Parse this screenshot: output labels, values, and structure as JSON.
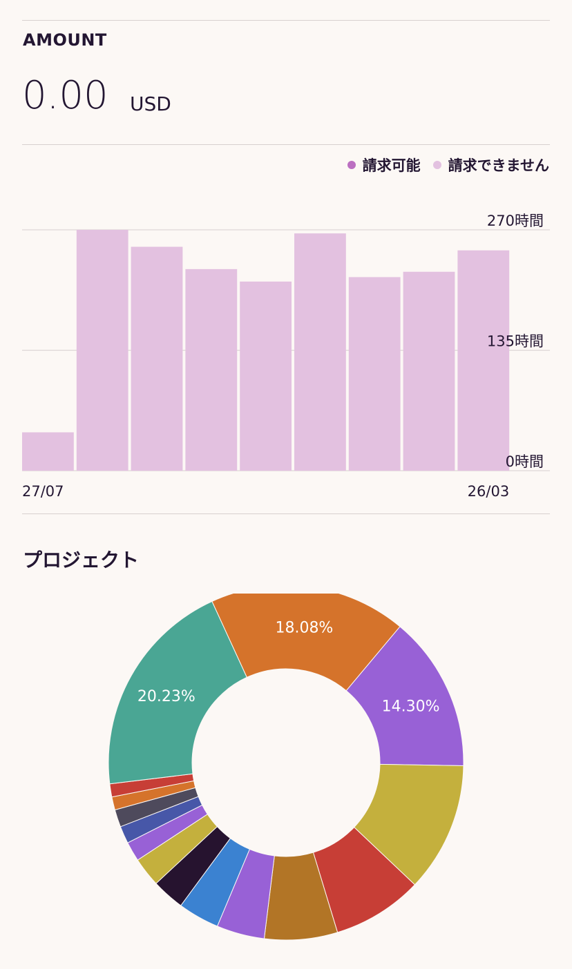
{
  "amount": {
    "label": "AMOUNT",
    "value": "0.00",
    "currency": "USD"
  },
  "legend": {
    "billable": {
      "label": "請求可能",
      "color": "#bb6fc1"
    },
    "non_billable": {
      "label": "請求できません",
      "color": "#e3c1e0"
    }
  },
  "section_title": "プロジェクト",
  "chart_data": [
    {
      "type": "bar",
      "series": [
        {
          "name": "請求可能",
          "values": [
            0,
            0,
            0,
            0,
            0,
            0,
            0,
            0,
            0
          ]
        },
        {
          "name": "請求できません",
          "values": [
            43,
            270,
            251,
            226,
            212,
            266,
            217,
            223,
            247
          ]
        }
      ],
      "x_labels_shown": [
        "27/07",
        "26/03"
      ],
      "y_ticks": [
        "270時間",
        "135時間",
        "0時間"
      ],
      "ylim": [
        0,
        270
      ],
      "grid": true,
      "legend_position": "top-right"
    },
    {
      "type": "pie",
      "style": "donut",
      "slices": [
        {
          "value": 18.08,
          "label": "18.08%",
          "color": "#d5732b"
        },
        {
          "value": 14.3,
          "label": "14.30%",
          "color": "#9861d6"
        },
        {
          "value": 11.9,
          "label": "",
          "color": "#c4b03d"
        },
        {
          "value": 8.3,
          "label": "",
          "color": "#c73e36"
        },
        {
          "value": 6.7,
          "label": "",
          "color": "#b27526"
        },
        {
          "value": 4.4,
          "label": "",
          "color": "#9861d6"
        },
        {
          "value": 3.8,
          "label": "",
          "color": "#3b82d1"
        },
        {
          "value": 3.0,
          "label": "",
          "color": "#26132f"
        },
        {
          "value": 2.7,
          "label": "",
          "color": "#c4b03d"
        },
        {
          "value": 1.8,
          "label": "",
          "color": "#9861d6"
        },
        {
          "value": 1.6,
          "label": "",
          "color": "#4757a8"
        },
        {
          "value": 1.6,
          "label": "",
          "color": "#4e4a5c"
        },
        {
          "value": 1.2,
          "label": "",
          "color": "#d5732b"
        },
        {
          "value": 1.2,
          "label": "",
          "color": "#c73e36"
        },
        {
          "value": 20.23,
          "label": "20.23%",
          "color": "#4aa694"
        }
      ]
    }
  ]
}
